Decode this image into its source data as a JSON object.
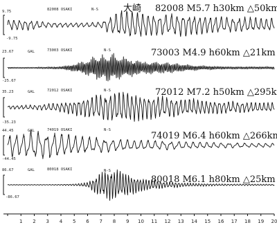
{
  "chart_data": {
    "type": "line",
    "title": "",
    "xlabel": "",
    "ylabel": "",
    "x_ticks": [
      "1",
      "2",
      "3",
      "4",
      "5",
      "6",
      "7",
      "8",
      "9",
      "10",
      "11",
      "12",
      "13",
      "14",
      "15",
      "16",
      "17",
      "18",
      "19",
      "20"
    ],
    "xlim": [
      0,
      20
    ],
    "site_label": "大崎",
    "series": [
      {
        "name": "82008 OSAKI",
        "header_id": "82008 OSAKI",
        "component": "N-S",
        "unit": "",
        "peak_pos": "9.75",
        "peak_neg": "-9.75",
        "event_label": "82008 M5.7 h30km △50km",
        "envelope": [
          0.35,
          0.35,
          0.3,
          0.18,
          0.15,
          0.15,
          0.15,
          0.2,
          0.75,
          1.0,
          0.85,
          0.7,
          0.7,
          0.75,
          0.7,
          0.6,
          0.55,
          0.5,
          0.5,
          0.45
        ],
        "period": 0.42
      },
      {
        "name": "73003 OSAKI",
        "header_id": "73003 OSAKI",
        "component": "N-S",
        "unit": "GAL",
        "peak_pos": "23.67",
        "peak_neg": "-25.67",
        "event_label": "73003 M4.9 h60km △21km",
        "envelope": [
          0.05,
          0.05,
          0.05,
          0.08,
          0.1,
          0.3,
          0.6,
          0.95,
          1.0,
          0.7,
          0.5,
          0.45,
          0.4,
          0.3,
          0.2,
          0.15,
          0.12,
          0.1,
          0.1,
          0.1
        ],
        "period": 0.12
      },
      {
        "name": "72012 OSAKI",
        "header_id": "72012 OSAKI",
        "component": "N-S",
        "unit": "GAL",
        "peak_pos": "35.23",
        "peak_neg": "-35.23",
        "event_label": "72012 M7.2 h50km △295km",
        "envelope": [
          0.12,
          0.12,
          0.15,
          0.22,
          0.3,
          0.45,
          0.65,
          0.8,
          1.0,
          0.95,
          0.8,
          0.7,
          0.65,
          0.55,
          0.5,
          0.45,
          0.4,
          0.38,
          0.35,
          0.3
        ],
        "period": 0.33
      },
      {
        "name": "74019 OSAKI",
        "header_id": "74019 OSAKI",
        "component": "N-S",
        "unit": "GAL",
        "peak_pos": "44.45",
        "peak_neg": "-44.45",
        "event_label": "74019 M6.4 h60km △266km",
        "envelope": [
          0.75,
          0.85,
          1.0,
          0.95,
          0.85,
          0.7,
          0.6,
          0.5,
          0.45,
          0.4,
          0.35,
          0.33,
          0.3,
          0.28,
          0.25,
          0.22,
          0.2,
          0.18,
          0.16,
          0.15
        ],
        "period": 0.55
      },
      {
        "name": "80018 OSAKI",
        "header_id": "80018 OSAKI",
        "component": "N-S",
        "unit": "GAL",
        "peak_pos": "86.67",
        "peak_neg": "-86.67",
        "event_label": "80018 M6.1 h80km △25km",
        "envelope": [
          0.02,
          0.02,
          0.02,
          0.02,
          0.03,
          0.05,
          0.15,
          0.8,
          1.0,
          0.7,
          0.45,
          0.3,
          0.2,
          0.15,
          0.1,
          0.08,
          0.06,
          0.05,
          0.05,
          0.04
        ],
        "period": 0.22
      }
    ]
  }
}
